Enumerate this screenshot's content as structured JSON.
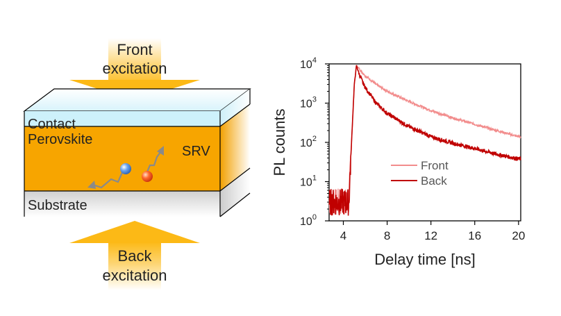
{
  "diagram": {
    "front_label_line1": "Front",
    "front_label_line2": "excitation",
    "back_label_line1": "Back",
    "back_label_line2": "excitation",
    "contact_label": "Contact",
    "perovskite_label": "Perovskite",
    "substrate_label": "Substrate",
    "srv_label": "SRV",
    "colors": {
      "arrow": "#fcb916",
      "perovskite": "#f7a500",
      "contact": "#cdf1fb",
      "substrate": "#d6d6d6",
      "electron": "#4a86d8",
      "hole": "#f04a1a"
    }
  },
  "chart_data": {
    "type": "line",
    "xlabel": "Delay time [ns]",
    "ylabel": "PL counts",
    "xlim": [
      2.7,
      20.2
    ],
    "ylim_log10": [
      0,
      4
    ],
    "yscale": "log",
    "x_ticks": [
      4,
      8,
      12,
      16,
      20
    ],
    "x_tick_labels": [
      "4",
      "8",
      "12",
      "16",
      "20"
    ],
    "y_ticks": [
      1,
      10,
      100,
      1000,
      10000
    ],
    "y_tick_labels": [
      {
        "base": "10",
        "exp": "0"
      },
      {
        "base": "10",
        "exp": "1"
      },
      {
        "base": "10",
        "exp": "2"
      },
      {
        "base": "10",
        "exp": "3"
      },
      {
        "base": "10",
        "exp": "4"
      }
    ],
    "legend_position": "center-right",
    "series": [
      {
        "name": "Front",
        "color": "#f28c8c",
        "x": [
          2.7,
          4.5,
          4.8,
          5.0,
          5.2,
          6,
          7,
          8,
          10,
          12,
          14,
          16,
          18,
          20
        ],
        "y": [
          3,
          3,
          200,
          3000,
          9000,
          5000,
          3000,
          2000,
          1100,
          650,
          420,
          290,
          200,
          140
        ]
      },
      {
        "name": "Back",
        "color": "#c00000",
        "x": [
          2.7,
          4.5,
          4.8,
          5.0,
          5.2,
          5.5,
          6,
          7,
          8,
          10,
          12,
          14,
          16,
          18,
          20
        ],
        "y": [
          3,
          3,
          200,
          3000,
          9000,
          5000,
          2500,
          1000,
          550,
          250,
          140,
          95,
          70,
          50,
          38
        ]
      }
    ]
  }
}
